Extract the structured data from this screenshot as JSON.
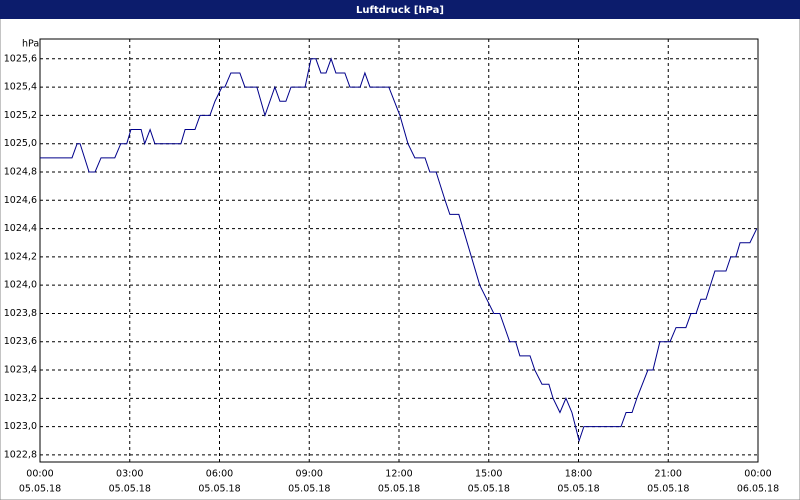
{
  "chart_data": {
    "type": "line",
    "title": "Luftdruck [hPa]",
    "y_unit": "hPa",
    "x": [
      0,
      1.07,
      1.24,
      1.34,
      1.64,
      1.84,
      2.04,
      2.5,
      2.7,
      2.9,
      3.04,
      3.38,
      3.5,
      3.68,
      3.84,
      4.71,
      4.85,
      5.18,
      5.35,
      5.68,
      5.85,
      6.08,
      6.18,
      6.38,
      6.68,
      6.85,
      7.25,
      7.52,
      7.85,
      8.02,
      8.22,
      8.39,
      8.86,
      9.06,
      9.22,
      9.39,
      9.56,
      9.73,
      9.89,
      10.19,
      10.36,
      10.7,
      10.86,
      11.03,
      11.66,
      12.03,
      12.3,
      12.53,
      12.87,
      13.03,
      13.24,
      13.54,
      13.7,
      14.0,
      14.14,
      14.7,
      15.17,
      15.37,
      15.7,
      15.9,
      16.04,
      16.38,
      16.54,
      16.78,
      17.01,
      17.15,
      17.38,
      17.58,
      17.78,
      18.02,
      18.18,
      19.42,
      19.59,
      19.79,
      19.95,
      20.32,
      20.49,
      20.72,
      21.06,
      21.26,
      21.59,
      21.76,
      21.93,
      22.09,
      22.26,
      22.56,
      22.93,
      23.09,
      23.26,
      23.4,
      23.73,
      23.96
    ],
    "series": [
      {
        "name": "Luftdruck",
        "color": "#00008b",
        "values": [
          1024.9,
          1024.9,
          1025.0,
          1025.0,
          1024.8,
          1024.8,
          1024.9,
          1024.9,
          1025.0,
          1025.0,
          1025.1,
          1025.1,
          1025.0,
          1025.1,
          1025.0,
          1025.0,
          1025.1,
          1025.1,
          1025.2,
          1025.2,
          1025.3,
          1025.4,
          1025.4,
          1025.5,
          1025.5,
          1025.4,
          1025.4,
          1025.2,
          1025.4,
          1025.3,
          1025.3,
          1025.4,
          1025.4,
          1025.6,
          1025.6,
          1025.5,
          1025.5,
          1025.6,
          1025.5,
          1025.5,
          1025.4,
          1025.4,
          1025.5,
          1025.4,
          1025.4,
          1025.2,
          1025.0,
          1024.9,
          1024.9,
          1024.8,
          1024.8,
          1024.6,
          1024.5,
          1024.5,
          1024.4,
          1024.0,
          1023.8,
          1023.8,
          1023.6,
          1023.6,
          1023.5,
          1023.5,
          1023.4,
          1023.3,
          1023.3,
          1023.2,
          1023.1,
          1023.2,
          1023.1,
          1022.9,
          1023.0,
          1023.0,
          1023.1,
          1023.1,
          1023.2,
          1023.4,
          1023.4,
          1023.6,
          1023.6,
          1023.7,
          1023.7,
          1023.8,
          1023.8,
          1023.9,
          1023.9,
          1024.1,
          1024.1,
          1024.2,
          1024.2,
          1024.3,
          1024.3,
          1024.4
        ]
      }
    ],
    "xlim": [
      0,
      24
    ],
    "ylim": [
      1022.75,
      1025.74
    ],
    "xticks": [
      {
        "value": 0,
        "label": "00:00",
        "date": "05.05.18"
      },
      {
        "value": 3,
        "label": "03:00",
        "date": "05.05.18"
      },
      {
        "value": 6,
        "label": "06:00",
        "date": "05.05.18"
      },
      {
        "value": 9,
        "label": "09:00",
        "date": "05.05.18"
      },
      {
        "value": 12,
        "label": "12:00",
        "date": "05.05.18"
      },
      {
        "value": 15,
        "label": "15:00",
        "date": "05.05.18"
      },
      {
        "value": 18,
        "label": "18:00",
        "date": "05.05.18"
      },
      {
        "value": 21,
        "label": "21:00",
        "date": "05.05.18"
      },
      {
        "value": 24,
        "label": "00:00",
        "date": "06.05.18"
      }
    ],
    "yticks": [
      {
        "value": 1022.8,
        "label": "1022,8"
      },
      {
        "value": 1023.0,
        "label": "1023,0"
      },
      {
        "value": 1023.2,
        "label": "1023,2"
      },
      {
        "value": 1023.4,
        "label": "1023,4"
      },
      {
        "value": 1023.6,
        "label": "1023,6"
      },
      {
        "value": 1023.8,
        "label": "1023,8"
      },
      {
        "value": 1024.0,
        "label": "1024,0"
      },
      {
        "value": 1024.2,
        "label": "1024,2"
      },
      {
        "value": 1024.4,
        "label": "1024,4"
      },
      {
        "value": 1024.6,
        "label": "1024,6"
      },
      {
        "value": 1024.8,
        "label": "1024,8"
      },
      {
        "value": 1025.0,
        "label": "1025,0"
      },
      {
        "value": 1025.2,
        "label": "1025,2"
      },
      {
        "value": 1025.4,
        "label": "1025,4"
      },
      {
        "value": 1025.6,
        "label": "1025,6"
      }
    ],
    "grid": true
  }
}
